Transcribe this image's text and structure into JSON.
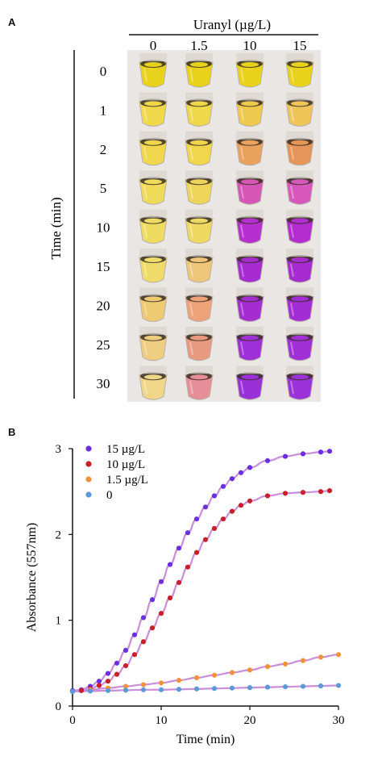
{
  "panel_a": {
    "letter": "A",
    "column_header": "Uranyl (µg/L)",
    "row_axis_label": "Time (min)",
    "columns": [
      "0",
      "1.5",
      "10",
      "15"
    ],
    "rows": [
      "0",
      "1",
      "2",
      "5",
      "10",
      "15",
      "20",
      "25",
      "30"
    ],
    "tube_colors": [
      [
        "#e9d21c",
        "#e9d21c",
        "#e9d21c",
        "#e9d21c"
      ],
      [
        "#efd84a",
        "#efd84a",
        "#efc94e",
        "#efc55a"
      ],
      [
        "#efd64c",
        "#efd64c",
        "#eba15e",
        "#e69558"
      ],
      [
        "#f0da5a",
        "#eed45a",
        "#d855b8",
        "#d857bc"
      ],
      [
        "#eedb62",
        "#efd862",
        "#b62fd0",
        "#b22cd0"
      ],
      [
        "#eedb6a",
        "#efc57a",
        "#a62bd0",
        "#a72cd0"
      ],
      [
        "#eecb73",
        "#eda27a",
        "#a42dd2",
        "#a32dd4"
      ],
      [
        "#efcd80",
        "#e89980",
        "#9f2fd6",
        "#a02fd6"
      ],
      [
        "#f0d688",
        "#e88e98",
        "#9a31d8",
        "#9b31d8"
      ]
    ]
  },
  "panel_b": {
    "letter": "B",
    "chart_data": {
      "type": "scatter",
      "xlabel": "Time (min)",
      "ylabel": "Absorbance (557nm)",
      "xlim": [
        0,
        30
      ],
      "ylim": [
        0,
        3
      ],
      "xticks": [
        "0",
        "10",
        "20",
        "30"
      ],
      "yticks": [
        "0",
        "1",
        "2",
        "3"
      ],
      "legend_position": "top-left",
      "fit_curve_color": "#c98ed8",
      "series": [
        {
          "name": "15 µg/L",
          "color": "#6a2fe0",
          "points": [
            [
              0,
              0.18
            ],
            [
              1,
              0.19
            ],
            [
              2,
              0.23
            ],
            [
              3,
              0.29
            ],
            [
              4,
              0.38
            ],
            [
              5,
              0.5
            ],
            [
              6,
              0.65
            ],
            [
              7,
              0.83
            ],
            [
              8,
              1.03
            ],
            [
              9,
              1.24
            ],
            [
              10,
              1.45
            ],
            [
              11,
              1.65
            ],
            [
              12,
              1.84
            ],
            [
              13,
              2.02
            ],
            [
              14,
              2.18
            ],
            [
              15,
              2.32
            ],
            [
              16,
              2.45
            ],
            [
              17,
              2.56
            ],
            [
              18,
              2.65
            ],
            [
              19,
              2.72
            ],
            [
              20,
              2.78
            ],
            [
              22,
              2.86
            ],
            [
              24,
              2.91
            ],
            [
              26,
              2.94
            ],
            [
              28,
              2.96
            ],
            [
              29,
              2.97
            ]
          ]
        },
        {
          "name": "10 µg/L",
          "color": "#c8202a",
          "points": [
            [
              0,
              0.17
            ],
            [
              1,
              0.18
            ],
            [
              2,
              0.2
            ],
            [
              3,
              0.24
            ],
            [
              4,
              0.29
            ],
            [
              5,
              0.37
            ],
            [
              6,
              0.47
            ],
            [
              7,
              0.6
            ],
            [
              8,
              0.75
            ],
            [
              9,
              0.91
            ],
            [
              10,
              1.08
            ],
            [
              11,
              1.26
            ],
            [
              12,
              1.44
            ],
            [
              13,
              1.62
            ],
            [
              14,
              1.79
            ],
            [
              15,
              1.94
            ],
            [
              16,
              2.07
            ],
            [
              17,
              2.18
            ],
            [
              18,
              2.27
            ],
            [
              19,
              2.34
            ],
            [
              20,
              2.39
            ],
            [
              22,
              2.45
            ],
            [
              24,
              2.48
            ],
            [
              26,
              2.49
            ],
            [
              28,
              2.5
            ],
            [
              29,
              2.51
            ]
          ]
        },
        {
          "name": "1.5 µg/L",
          "color": "#f0923a",
          "points": [
            [
              0,
              0.17
            ],
            [
              2,
              0.19
            ],
            [
              4,
              0.21
            ],
            [
              6,
              0.23
            ],
            [
              8,
              0.25
            ],
            [
              10,
              0.27
            ],
            [
              12,
              0.3
            ],
            [
              14,
              0.33
            ],
            [
              16,
              0.36
            ],
            [
              18,
              0.39
            ],
            [
              20,
              0.42
            ],
            [
              22,
              0.46
            ],
            [
              24,
              0.49
            ],
            [
              26,
              0.53
            ],
            [
              28,
              0.57
            ],
            [
              30,
              0.6
            ]
          ]
        },
        {
          "name": "0",
          "color": "#5b9ad8",
          "points": [
            [
              0,
              0.17
            ],
            [
              2,
              0.175
            ],
            [
              4,
              0.18
            ],
            [
              6,
              0.185
            ],
            [
              8,
              0.19
            ],
            [
              10,
              0.19
            ],
            [
              12,
              0.195
            ],
            [
              14,
              0.2
            ],
            [
              16,
              0.205
            ],
            [
              18,
              0.21
            ],
            [
              20,
              0.215
            ],
            [
              22,
              0.22
            ],
            [
              24,
              0.225
            ],
            [
              26,
              0.23
            ],
            [
              28,
              0.235
            ],
            [
              30,
              0.24
            ]
          ]
        }
      ]
    }
  }
}
